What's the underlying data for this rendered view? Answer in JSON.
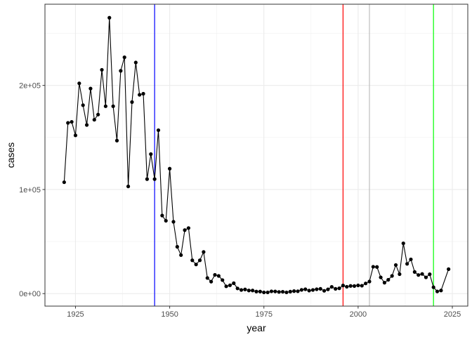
{
  "chart_data": {
    "type": "line",
    "xlabel": "year",
    "ylabel": "cases",
    "xlim": [
      1916.9,
      2029.1
    ],
    "ylim": [
      -12000,
      278000
    ],
    "x_ticks": [
      1925,
      1950,
      1975,
      2000,
      2025
    ],
    "x_tick_labels": [
      "1925",
      "1950",
      "1975",
      "2000",
      "2025"
    ],
    "y_ticks": [
      0,
      100000,
      200000
    ],
    "y_tick_labels": [
      "0e+00",
      "1e+05",
      "2e+05"
    ],
    "grid": true,
    "series": [
      {
        "x": [
          1922,
          1923,
          1924,
          1925,
          1926,
          1927,
          1928,
          1929,
          1930,
          1931,
          1932,
          1933,
          1934,
          1935,
          1936,
          1937,
          1938,
          1939,
          1940,
          1941,
          1942,
          1943,
          1944,
          1945,
          1946,
          1947,
          1948,
          1949,
          1950,
          1951,
          1952,
          1953,
          1954,
          1955,
          1956,
          1957,
          1958,
          1959,
          1960,
          1961,
          1962,
          1963,
          1964,
          1965,
          1966,
          1967,
          1968,
          1969,
          1970,
          1971,
          1972,
          1973,
          1974,
          1975,
          1976,
          1977,
          1978,
          1979,
          1980,
          1981,
          1982,
          1983,
          1984,
          1985,
          1986,
          1987,
          1988,
          1989,
          1990,
          1991,
          1992,
          1993,
          1994,
          1995,
          1996,
          1997,
          1998,
          1999,
          2000,
          2001,
          2002,
          2003,
          2004,
          2005,
          2006,
          2007,
          2008,
          2009,
          2010,
          2011,
          2012,
          2013,
          2014,
          2015,
          2016,
          2017,
          2018,
          2019,
          2020,
          2021,
          2022,
          2024
        ],
        "y": [
          107000,
          164000,
          165000,
          152000,
          202000,
          181000,
          162000,
          197000,
          167000,
          172000,
          215000,
          180000,
          265000,
          180000,
          147000,
          214000,
          227000,
          103000,
          184000,
          222000,
          191000,
          192000,
          110000,
          134000,
          110000,
          157000,
          75000,
          70000,
          120000,
          69000,
          45000,
          37000,
          61000,
          63000,
          32000,
          28000,
          32000,
          40000,
          15000,
          11500,
          18000,
          17000,
          13000,
          7000,
          8000,
          10000,
          5000,
          3500,
          4000,
          3000,
          3000,
          2000,
          2000,
          1200,
          1200,
          2200,
          2100,
          1600,
          1800,
          1200,
          1900,
          2400,
          2300,
          3600,
          4200,
          2900,
          3500,
          4200,
          4600,
          2700,
          4100,
          6500,
          4600,
          5100,
          7800,
          6600,
          7400,
          7300,
          7900,
          7600,
          9800,
          11600,
          25800,
          25600,
          15600,
          10500,
          13300,
          17000,
          27500,
          18700,
          48300,
          28600,
          32900,
          20800,
          17900,
          18900,
          15600,
          18600,
          6100,
          2100,
          3000,
          23500
        ],
        "color": "#000000"
      }
    ],
    "vlines": [
      {
        "x": 1946,
        "color": "#0000ff"
      },
      {
        "x": 1996,
        "color": "#ff0000"
      },
      {
        "x": 2003,
        "color": "#bebebe"
      },
      {
        "x": 2020,
        "color": "#00ff00"
      }
    ]
  }
}
